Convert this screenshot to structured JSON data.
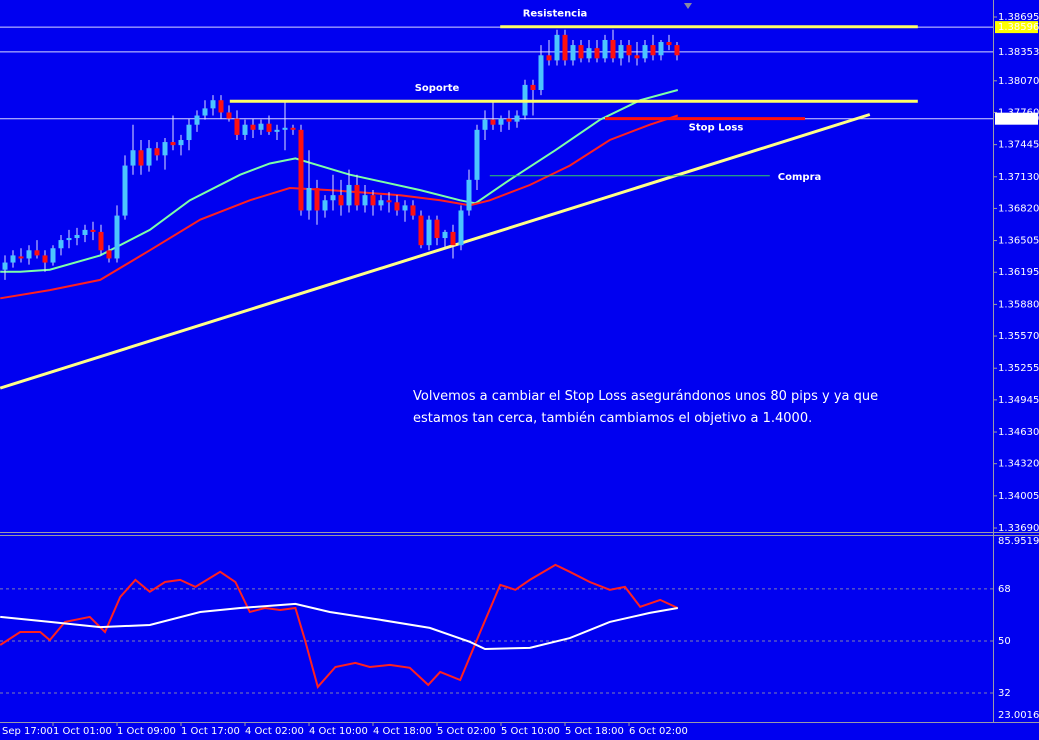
{
  "chart_data": [
    {
      "type": "candlestick",
      "annotation": "Volvemos a cambiar el Stop Loss asegurándonos unos 80 pips y ya que estamos tan cerca, también cambiamos el objetivo a 1.4000.",
      "categories": [
        "Sep 17:00",
        null,
        null,
        null,
        null,
        null,
        null,
        null,
        "1 Oct 01:00",
        null,
        null,
        null,
        null,
        null,
        null,
        null,
        "1 Oct 09:00",
        null,
        null,
        null,
        null,
        null,
        null,
        null,
        "1 Oct 17:00",
        null,
        null,
        null,
        null,
        null,
        null,
        null,
        "4 Oct 02:00",
        null,
        null,
        null,
        null,
        null,
        null,
        null,
        "4 Oct 10:00",
        null,
        null,
        null,
        null,
        null,
        null,
        null,
        "4 Oct 18:00",
        null,
        null,
        null,
        null,
        null,
        null,
        null,
        "5 Oct 02:00",
        null,
        null,
        null,
        null,
        null,
        null,
        null,
        "5 Oct 10:00",
        null,
        null,
        null,
        null,
        null,
        null,
        null,
        "5 Oct 18:00",
        null,
        null,
        null,
        null,
        null,
        null,
        null,
        "6 Oct 02:00",
        null,
        null,
        null,
        null,
        null,
        null
      ],
      "open": [
        null,
        null,
        1.3622,
        1.3629,
        1.3635,
        1.3633,
        1.3641,
        1.3636,
        1.3629,
        1.3643,
        1.3651,
        1.3653,
        1.3656,
        1.3661,
        1.3659,
        1.3641,
        1.3633,
        1.3675,
        1.3724,
        1.3739,
        1.3724,
        1.3741,
        1.3734,
        1.3747,
        1.3744,
        1.3749,
        1.3764,
        1.3773,
        1.378,
        1.3788,
        1.3776,
        1.377,
        1.3754,
        1.3764,
        1.3759,
        1.3765,
        1.3757,
        1.3759,
        1.3761,
        1.3759,
        1.368,
        1.3702,
        1.368,
        1.369,
        1.3695,
        1.3685,
        1.3705,
        1.3685,
        1.3695,
        1.3685,
        1.369,
        1.3688,
        1.368,
        1.3685,
        1.3675,
        1.3646,
        1.3671,
        1.3653,
        1.3659,
        1.3646,
        1.368,
        1.371,
        1.3759,
        1.3769,
        1.3764,
        1.377,
        1.3767,
        1.3773,
        1.3803,
        1.3798,
        1.3832,
        1.3827,
        1.3852,
        1.3827,
        1.3842,
        1.3829,
        1.3839,
        1.3829,
        1.3847,
        1.3829,
        1.3842,
        1.3832,
        1.3829,
        1.3842,
        1.3832,
        1.3845,
        1.3842
      ],
      "high": [
        null,
        null,
        1.3636,
        1.3641,
        1.3643,
        1.3646,
        1.3651,
        1.3641,
        1.3646,
        1.3656,
        1.3661,
        1.3663,
        1.3666,
        1.3669,
        1.3666,
        1.3646,
        1.3685,
        1.3734,
        1.3764,
        1.3749,
        1.3749,
        1.3747,
        1.3751,
        1.3773,
        1.3754,
        1.377,
        1.3778,
        1.3788,
        1.3793,
        1.3793,
        1.3783,
        1.3778,
        1.3769,
        1.377,
        1.3769,
        1.3773,
        1.3764,
        1.3788,
        1.3764,
        1.3764,
        1.3739,
        1.371,
        1.3695,
        1.3715,
        1.371,
        1.372,
        1.3715,
        1.3705,
        1.37,
        1.3695,
        1.3698,
        1.3695,
        1.369,
        1.369,
        1.368,
        1.3675,
        1.3675,
        1.3661,
        1.3666,
        1.3685,
        1.372,
        1.3764,
        1.3778,
        1.3788,
        1.3773,
        1.3778,
        1.3778,
        1.3808,
        1.3808,
        1.3842,
        1.3847,
        1.3857,
        1.3857,
        1.3847,
        1.3847,
        1.3847,
        1.3847,
        1.3852,
        1.3857,
        1.3847,
        1.3847,
        1.3845,
        1.3847,
        1.3852,
        1.3847,
        1.3852,
        1.3845
      ],
      "low": [
        null,
        null,
        1.3612,
        1.3624,
        1.3629,
        1.3627,
        1.3633,
        1.362,
        1.3626,
        1.3636,
        1.3643,
        1.3646,
        1.3649,
        1.3651,
        1.3636,
        1.3629,
        1.3629,
        1.3671,
        1.3715,
        1.3715,
        1.3718,
        1.3729,
        1.372,
        1.3739,
        1.3734,
        1.3739,
        1.3757,
        1.3769,
        1.3773,
        1.377,
        1.3767,
        1.3749,
        1.3749,
        1.3751,
        1.3754,
        1.3754,
        1.3749,
        1.3739,
        1.3754,
        1.3675,
        1.3671,
        1.3666,
        1.3673,
        1.368,
        1.3675,
        1.3678,
        1.368,
        1.3678,
        1.3675,
        1.368,
        1.3678,
        1.3675,
        1.3669,
        1.3671,
        1.3643,
        1.3641,
        1.3646,
        1.3643,
        1.3633,
        1.3641,
        1.3675,
        1.37,
        1.3749,
        1.3759,
        1.3757,
        1.3759,
        1.3761,
        1.3769,
        1.3773,
        1.3793,
        1.3822,
        1.3822,
        1.3822,
        1.3822,
        1.3825,
        1.3825,
        1.3825,
        1.3825,
        1.3825,
        1.3822,
        1.3825,
        1.3822,
        1.3825,
        1.3827,
        1.3827,
        1.3837,
        1.3827
      ],
      "close": [
        null,
        null,
        1.3629,
        1.3636,
        1.3633,
        1.3641,
        1.3636,
        1.3629,
        1.3643,
        1.3651,
        1.3653,
        1.3656,
        1.3661,
        1.3659,
        1.3641,
        1.3633,
        1.3675,
        1.3724,
        1.3739,
        1.3724,
        1.3741,
        1.3734,
        1.3747,
        1.3744,
        1.3749,
        1.3764,
        1.3773,
        1.378,
        1.3788,
        1.3776,
        1.377,
        1.3754,
        1.3764,
        1.3759,
        1.3765,
        1.3757,
        1.3759,
        1.3761,
        1.3759,
        1.368,
        1.3702,
        1.368,
        1.369,
        1.3695,
        1.3685,
        1.3705,
        1.3685,
        1.3695,
        1.3685,
        1.369,
        1.3688,
        1.368,
        1.3685,
        1.3675,
        1.3646,
        1.3671,
        1.3653,
        1.3659,
        1.3646,
        1.368,
        1.371,
        1.3759,
        1.3769,
        1.3764,
        1.377,
        1.3767,
        1.3773,
        1.3803,
        1.3798,
        1.3832,
        1.3827,
        1.3852,
        1.3827,
        1.3842,
        1.3829,
        1.3839,
        1.3829,
        1.3847,
        1.3829,
        1.3842,
        1.3832,
        1.3829,
        1.3842,
        1.3832,
        1.3845,
        1.3842,
        1.3832
      ],
      "up_color": "#4cc4ff",
      "down_color": "#ff1010",
      "overlays": [
        {
          "color": "#7dffa8",
          "x": [
            1.4,
            3.9,
            7.6,
            13.9,
            20.1,
            25.1,
            31.4,
            35.1,
            38.3,
            45.1,
            53.9,
            58.9,
            60.8,
            65.1,
            70.8,
            76.4,
            81.4,
            86.1
          ],
          "values": [
            1.362,
            1.362,
            1.3622,
            1.3636,
            1.3661,
            1.369,
            1.3715,
            1.3726,
            1.3731,
            1.3715,
            1.37,
            1.369,
            1.3687,
            1.371,
            1.3739,
            1.3769,
            1.3788,
            1.3798
          ]
        },
        {
          "color": "#ff2020",
          "x": [
            1.4,
            7.6,
            13.9,
            20.1,
            26.4,
            32.6,
            37.6,
            42.6,
            51.4,
            56.4,
            60.1,
            62.6,
            67.6,
            72.6,
            77.6,
            82.6,
            86.1
          ],
          "values": [
            1.3594,
            1.3602,
            1.3612,
            1.3641,
            1.3671,
            1.369,
            1.3702,
            1.37,
            1.3695,
            1.369,
            1.3685,
            1.369,
            1.3705,
            1.3724,
            1.3749,
            1.3764,
            1.3773
          ]
        }
      ],
      "trendline": {
        "color": "#ffff88",
        "x": [
          1.4,
          110.1
        ],
        "values": [
          1.3506,
          1.3774
        ]
      },
      "levels": [
        {
          "label": "Resistencia",
          "price": 1.386,
          "start": 63.9,
          "end": 116.1,
          "color": "#ffff66"
        },
        {
          "label": "Soporte",
          "price": 1.3787,
          "start": 30.1,
          "end": 116.1,
          "color": "#ffff66"
        },
        {
          "label": "Stop Loss",
          "price": 1.377,
          "start": 77,
          "end": 102,
          "color": "#ff1010"
        },
        {
          "label": "Compra",
          "price": 1.3714,
          "start": 62.6,
          "end": 97.6,
          "color": "#33cc66"
        }
      ],
      "price_labels": [
        {
          "value": 1.38596,
          "color": "#ffff00"
        },
        {
          "value": 1.38353,
          "color": "#0000f0"
        },
        {
          "value": 1.37699,
          "color": "#ffffff"
        }
      ],
      "ylim": [
        1.3369,
        1.38695
      ],
      "yticks": [
        1.38695,
        {
          "value": 1.3807,
          "label": "1.38070"
        },
        {
          "value": 1.3776,
          "label": "1.37760"
        },
        1.37445,
        {
          "value": 1.3713,
          "label": "1.37130"
        },
        {
          "value": 1.3682,
          "label": "1.36820"
        },
        1.36505,
        1.36195,
        {
          "value": 1.3588,
          "label": "1.35880"
        },
        {
          "value": 1.3557,
          "label": "1.35570"
        },
        1.35255,
        1.34945,
        {
          "value": 1.3463,
          "label": "1.34630"
        },
        {
          "value": 1.3432,
          "label": "1.34320"
        },
        1.34005,
        {
          "value": 1.3369,
          "label": "1.33690"
        }
      ]
    },
    {
      "type": "line",
      "series": [
        {
          "color": "#ff2020",
          "x": [
            1.4,
            3.9,
            6.4,
            7.6,
            9.5,
            12.6,
            14.5,
            16.4,
            18.3,
            20.1,
            22,
            23.9,
            25.8,
            28.9,
            30.8,
            32.6,
            34.5,
            36.4,
            38.3,
            39.5,
            41.1,
            43.3,
            45.8,
            47.6,
            50.1,
            52.6,
            54.9,
            56.4,
            58.9,
            61.4,
            63.9,
            65.8,
            67.6,
            70.8,
            72.6,
            75.1,
            77.6,
            79.5,
            81.4,
            83.9,
            86.1
          ],
          "values": [
            48.6,
            53.1,
            53.1,
            50.3,
            56.6,
            58.3,
            53.1,
            65.2,
            71.1,
            67.0,
            70.4,
            71.1,
            68.7,
            73.9,
            70.4,
            60.0,
            61.4,
            60.7,
            61.4,
            50.3,
            34.1,
            41.0,
            42.4,
            41.0,
            41.7,
            40.7,
            34.8,
            39.3,
            36.5,
            53.1,
            69.4,
            67.7,
            71.1,
            76.3,
            73.9,
            70.4,
            67.7,
            68.7,
            61.8,
            64.2,
            61.4
          ]
        },
        {
          "color": "#ffffff",
          "x": [
            1.4,
            7.6,
            13.9,
            20.1,
            26.4,
            31.4,
            38.3,
            42.6,
            48.9,
            55.1,
            60.1,
            62,
            67.6,
            72.6,
            77.6,
            82.6,
            86.1
          ],
          "values": [
            58.3,
            56.6,
            54.8,
            55.5,
            60.0,
            61.4,
            62.8,
            60.0,
            57.3,
            54.5,
            49.7,
            47.2,
            47.6,
            51.0,
            56.6,
            59.7,
            61.4
          ]
        }
      ],
      "ylim": [
        23.0016,
        85.9519
      ],
      "yticks": [
        85.9519,
        68,
        50,
        32,
        23.0016
      ],
      "grid": true
    }
  ]
}
